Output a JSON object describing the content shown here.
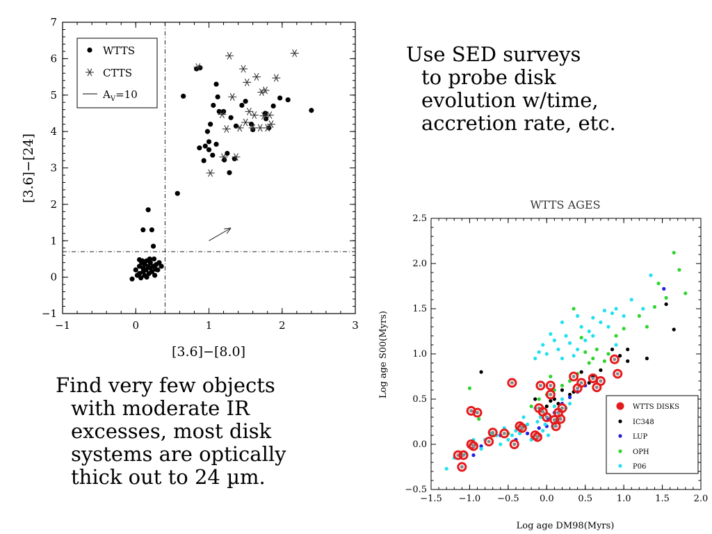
{
  "text_top_right": [
    "Use SED surveys",
    "to probe disk",
    "evolution w/time,",
    "accretion rate, etc."
  ],
  "text_bottom_left": [
    "Find very few objects",
    "with moderate IR",
    "excesses, most disk",
    "systems are optically",
    "thick out to 24 µm."
  ],
  "chart_data": [
    {
      "type": "scatter",
      "title": "",
      "xlabel": "[3.6]−[8.0]",
      "ylabel": "[3.6]−[24]",
      "xlim": [
        -1,
        3
      ],
      "ylim": [
        -1,
        7
      ],
      "xticks": [
        "−1",
        "0",
        "1",
        "2",
        "3"
      ],
      "yticks": [
        "−1",
        "0",
        "1",
        "2",
        "3",
        "4",
        "5",
        "6",
        "7"
      ],
      "legend_position": "top-left",
      "legend_labels": [
        "WTTS",
        "CTTS",
        "A",
        "V",
        "=10"
      ],
      "reference_lines": {
        "vertical_x": 0.4,
        "horizontal_y": 0.7
      },
      "arrow": {
        "from": [
          1.0,
          1.0
        ],
        "to": [
          1.3,
          1.35
        ]
      },
      "series": [
        {
          "name": "WTTS",
          "marker": "dot",
          "points": [
            [
              -0.05,
              -0.05
            ],
            [
              0.0,
              0.2
            ],
            [
              0.02,
              0.05
            ],
            [
              0.05,
              0.3
            ],
            [
              0.05,
              0.1
            ],
            [
              0.07,
              -0.02
            ],
            [
              0.08,
              0.4
            ],
            [
              0.1,
              0.25
            ],
            [
              0.1,
              0.15
            ],
            [
              0.12,
              0.05
            ],
            [
              0.12,
              0.35
            ],
            [
              0.14,
              0.2
            ],
            [
              0.15,
              0.45
            ],
            [
              0.15,
              0.0
            ],
            [
              0.17,
              0.3
            ],
            [
              0.18,
              0.1
            ],
            [
              0.2,
              0.25
            ],
            [
              0.2,
              0.4
            ],
            [
              0.22,
              0.15
            ],
            [
              0.24,
              0.3
            ],
            [
              0.25,
              0.5
            ],
            [
              0.26,
              0.05
            ],
            [
              0.28,
              0.35
            ],
            [
              0.3,
              0.2
            ],
            [
              0.32,
              0.4
            ],
            [
              0.35,
              0.3
            ],
            [
              0.09,
              0.45
            ],
            [
              0.19,
              0.5
            ],
            [
              0.05,
              0.48
            ],
            [
              0.27,
              0.22
            ],
            [
              0.1,
              1.3
            ],
            [
              0.17,
              1.85
            ],
            [
              0.22,
              1.3
            ],
            [
              0.24,
              0.85
            ],
            [
              0.57,
              2.3
            ],
            [
              0.65,
              4.97
            ],
            [
              0.83,
              5.72
            ],
            [
              0.88,
              5.75
            ],
            [
              0.87,
              3.55
            ],
            [
              0.93,
              3.2
            ],
            [
              0.95,
              3.6
            ],
            [
              0.98,
              4.0
            ],
            [
              1.0,
              3.72
            ],
            [
              1.0,
              3.5
            ],
            [
              1.02,
              4.2
            ],
            [
              1.05,
              3.35
            ],
            [
              1.06,
              4.72
            ],
            [
              1.1,
              3.65
            ],
            [
              1.1,
              5.3
            ],
            [
              1.12,
              4.95
            ],
            [
              1.14,
              4.55
            ],
            [
              1.2,
              4.55
            ],
            [
              1.21,
              3.22
            ],
            [
              1.25,
              3.4
            ],
            [
              1.28,
              2.87
            ],
            [
              1.3,
              4.38
            ],
            [
              1.35,
              3.25
            ],
            [
              1.37,
              4.15
            ],
            [
              1.45,
              4.72
            ],
            [
              1.5,
              4.83
            ],
            [
              1.58,
              4.2
            ],
            [
              1.6,
              4.05
            ],
            [
              1.77,
              4.5
            ],
            [
              1.78,
              4.35
            ],
            [
              1.82,
              4.1
            ],
            [
              1.88,
              4.7
            ],
            [
              1.97,
              4.92
            ],
            [
              2.08,
              4.87
            ],
            [
              2.4,
              4.58
            ]
          ]
        },
        {
          "name": "CTTS",
          "marker": "asterisk",
          "points": [
            [
              0.85,
              5.77
            ],
            [
              1.02,
              2.86
            ],
            [
              1.18,
              4.47
            ],
            [
              1.2,
              3.3
            ],
            [
              1.24,
              4.07
            ],
            [
              1.28,
              6.08
            ],
            [
              1.32,
              4.95
            ],
            [
              1.37,
              3.3
            ],
            [
              1.42,
              4.1
            ],
            [
              1.47,
              5.72
            ],
            [
              1.5,
              4.25
            ],
            [
              1.52,
              5.35
            ],
            [
              1.55,
              4.55
            ],
            [
              1.6,
              4.1
            ],
            [
              1.62,
              4.45
            ],
            [
              1.65,
              5.5
            ],
            [
              1.7,
              4.1
            ],
            [
              1.72,
              5.08
            ],
            [
              1.75,
              4.43
            ],
            [
              1.77,
              5.13
            ],
            [
              1.8,
              4.1
            ],
            [
              1.83,
              4.45
            ],
            [
              1.85,
              4.2
            ],
            [
              1.92,
              5.47
            ],
            [
              2.17,
              6.15
            ]
          ]
        }
      ]
    },
    {
      "type": "scatter",
      "title": "WTTS AGES",
      "xlabel": "Log age DM98(Myrs)",
      "ylabel": "Log age S00(Myrs)",
      "xlim": [
        -1.5,
        2.0
      ],
      "ylim": [
        -0.5,
        2.5
      ],
      "xticks": [
        "−1.5",
        "−1.0",
        "−0.5",
        "0.0",
        "0.5",
        "1.0",
        "1.5",
        "2.0"
      ],
      "yticks": [
        "−0.5",
        "0.0",
        "0.5",
        "1.0",
        "1.5",
        "2.0",
        "2.5"
      ],
      "legend_position": "bottom-right",
      "series": [
        {
          "name": "WTTS DISKS",
          "color": "#e41a1c",
          "points": [
            [
              -1.15,
              -0.12
            ],
            [
              -1.1,
              -0.25
            ],
            [
              -1.08,
              -0.12
            ],
            [
              -0.98,
              0.37
            ],
            [
              -0.9,
              0.35
            ],
            [
              -0.98,
              0.0
            ],
            [
              -0.95,
              -0.02
            ],
            [
              -0.75,
              0.03
            ],
            [
              -0.7,
              0.13
            ],
            [
              -0.55,
              0.12
            ],
            [
              -0.45,
              0.68
            ],
            [
              -0.42,
              0.0
            ],
            [
              -0.35,
              0.2
            ],
            [
              -0.32,
              0.18
            ],
            [
              -0.15,
              0.1
            ],
            [
              -0.12,
              0.08
            ],
            [
              -0.1,
              0.4
            ],
            [
              -0.08,
              0.65
            ],
            [
              -0.05,
              0.36
            ],
            [
              0.05,
              0.65
            ],
            [
              0.0,
              0.3
            ],
            [
              0.05,
              0.55
            ],
            [
              0.1,
              0.27
            ],
            [
              0.15,
              0.35
            ],
            [
              0.2,
              0.4
            ],
            [
              0.12,
              0.2
            ],
            [
              0.18,
              0.28
            ],
            [
              0.35,
              0.75
            ],
            [
              0.4,
              0.62
            ],
            [
              0.45,
              0.68
            ],
            [
              0.6,
              0.73
            ],
            [
              0.65,
              0.63
            ],
            [
              0.7,
              0.7
            ],
            [
              0.88,
              0.94
            ],
            [
              0.92,
              0.78
            ]
          ]
        },
        {
          "name": "IC348",
          "color": "#000000",
          "points": [
            [
              -0.85,
              0.8
            ],
            [
              -0.15,
              0.5
            ],
            [
              0.0,
              0.42
            ],
            [
              0.05,
              0.48
            ],
            [
              0.1,
              0.5
            ],
            [
              0.15,
              0.45
            ],
            [
              0.2,
              0.6
            ],
            [
              0.3,
              0.55
            ],
            [
              0.35,
              0.58
            ],
            [
              0.45,
              0.8
            ],
            [
              0.55,
              0.68
            ],
            [
              0.6,
              0.75
            ],
            [
              0.7,
              0.82
            ],
            [
              0.85,
              1.05
            ],
            [
              0.95,
              0.98
            ],
            [
              1.05,
              1.05
            ],
            [
              1.05,
              0.92
            ],
            [
              1.3,
              0.95
            ],
            [
              1.55,
              1.55
            ],
            [
              1.65,
              1.27
            ]
          ]
        },
        {
          "name": "LUP",
          "color": "#1f1fe0",
          "points": [
            [
              -0.95,
              -0.12
            ],
            [
              -0.85,
              -0.02
            ],
            [
              -0.6,
              0.1
            ],
            [
              -0.4,
              0.05
            ],
            [
              -0.25,
              0.12
            ],
            [
              -0.1,
              0.18
            ],
            [
              0.0,
              0.2
            ],
            [
              0.02,
              0.28
            ],
            [
              0.1,
              0.35
            ],
            [
              0.2,
              0.45
            ],
            [
              0.3,
              0.52
            ],
            [
              0.4,
              0.58
            ],
            [
              0.5,
              0.65
            ],
            [
              1.52,
              1.72
            ]
          ]
        },
        {
          "name": "OPH",
          "color": "#2fd52f",
          "points": [
            [
              -1.0,
              0.62
            ],
            [
              -0.88,
              0.28
            ],
            [
              -0.7,
              0.1
            ],
            [
              -0.5,
              0.12
            ],
            [
              -0.3,
              0.2
            ],
            [
              -0.2,
              0.42
            ],
            [
              -0.1,
              0.5
            ],
            [
              0.0,
              0.55
            ],
            [
              0.05,
              0.75
            ],
            [
              0.1,
              0.6
            ],
            [
              0.2,
              0.65
            ],
            [
              0.3,
              0.7
            ],
            [
              0.4,
              0.78
            ],
            [
              0.35,
              1.5
            ],
            [
              0.45,
              1.18
            ],
            [
              0.5,
              1.02
            ],
            [
              0.55,
              0.9
            ],
            [
              0.6,
              0.95
            ],
            [
              0.65,
              1.05
            ],
            [
              0.75,
              0.92
            ],
            [
              0.8,
              1.0
            ],
            [
              0.9,
              1.2
            ],
            [
              1.0,
              1.28
            ],
            [
              1.2,
              1.42
            ],
            [
              1.3,
              1.3
            ],
            [
              1.4,
              1.52
            ],
            [
              1.45,
              1.78
            ],
            [
              1.55,
              1.62
            ],
            [
              1.65,
              2.12
            ],
            [
              1.72,
              1.93
            ],
            [
              1.8,
              1.67
            ]
          ]
        },
        {
          "name": "P06",
          "color": "#22e0f0",
          "points": [
            [
              -1.3,
              -0.27
            ],
            [
              -1.2,
              -0.15
            ],
            [
              -1.05,
              -0.1
            ],
            [
              -0.95,
              0.05
            ],
            [
              -0.85,
              -0.05
            ],
            [
              -0.8,
              0.05
            ],
            [
              -0.72,
              0.12
            ],
            [
              -0.65,
              0.1
            ],
            [
              -0.6,
              0.0
            ],
            [
              -0.55,
              0.18
            ],
            [
              -0.5,
              0.05
            ],
            [
              -0.45,
              0.1
            ],
            [
              -0.4,
              0.15
            ],
            [
              -0.35,
              0.12
            ],
            [
              -0.3,
              0.3
            ],
            [
              -0.25,
              0.22
            ],
            [
              -0.2,
              0.05
            ],
            [
              -0.15,
              0.4
            ],
            [
              -0.12,
              0.25
            ],
            [
              -0.08,
              0.3
            ],
            [
              -0.05,
              0.15
            ],
            [
              -0.02,
              0.22
            ],
            [
              0.02,
              0.1
            ],
            [
              0.05,
              0.3
            ],
            [
              0.08,
              0.2
            ],
            [
              0.1,
              0.42
            ],
            [
              0.12,
              0.25
            ],
            [
              0.15,
              0.35
            ],
            [
              0.18,
              0.28
            ],
            [
              0.2,
              0.5
            ],
            [
              0.25,
              0.4
            ],
            [
              0.3,
              0.45
            ],
            [
              -0.15,
              0.95
            ],
            [
              -0.1,
              1.02
            ],
            [
              -0.05,
              1.1
            ],
            [
              0.0,
              1.0
            ],
            [
              0.05,
              1.22
            ],
            [
              0.1,
              1.15
            ],
            [
              0.15,
              1.05
            ],
            [
              0.2,
              0.95
            ],
            [
              0.25,
              1.2
            ],
            [
              0.3,
              1.12
            ],
            [
              0.35,
              0.98
            ],
            [
              0.4,
              1.05
            ],
            [
              0.45,
              1.3
            ],
            [
              0.5,
              1.15
            ],
            [
              0.55,
              1.25
            ],
            [
              0.6,
              1.4
            ],
            [
              0.7,
              1.35
            ],
            [
              0.75,
              1.48
            ],
            [
              0.8,
              1.3
            ],
            [
              0.85,
              1.45
            ],
            [
              0.9,
              1.5
            ],
            [
              1.0,
              1.42
            ],
            [
              1.1,
              1.6
            ],
            [
              1.25,
              1.5
            ],
            [
              1.35,
              1.87
            ],
            [
              0.2,
              1.35
            ],
            [
              0.4,
              1.42
            ],
            [
              0.6,
              1.2
            ],
            [
              0.9,
              1.1
            ]
          ]
        }
      ]
    }
  ]
}
